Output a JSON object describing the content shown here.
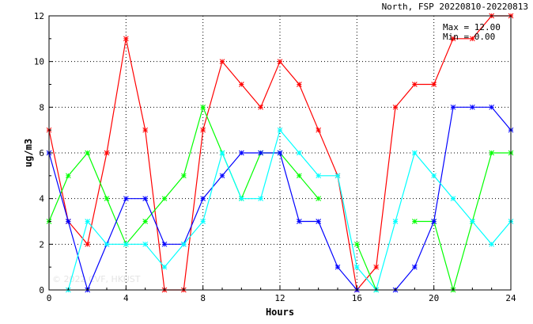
{
  "chart_data": {
    "type": "line",
    "title": "North, FSP 20220810-20220813",
    "xlabel": "Hours",
    "ylabel": "ug/m3",
    "xlim": [
      0,
      24
    ],
    "ylim": [
      0,
      12
    ],
    "x_ticks": [
      0,
      4,
      8,
      12,
      16,
      20,
      24
    ],
    "y_ticks": [
      0,
      2,
      4,
      6,
      8,
      10,
      12
    ],
    "grid": true,
    "stats": {
      "max": "Max = 12.00",
      "min": "Min =  0.00"
    },
    "watermark": "© 2022 CVF, HKUST",
    "x": [
      0,
      1,
      2,
      3,
      4,
      5,
      6,
      7,
      8,
      9,
      10,
      11,
      12,
      13,
      14,
      15,
      16,
      17,
      18,
      19,
      20,
      21,
      22,
      23,
      24
    ],
    "series": [
      {
        "color": "#ff0000",
        "values": [
          7,
          3,
          2,
          6,
          11,
          7,
          0,
          0,
          7,
          10,
          9,
          8,
          10,
          9,
          7,
          5,
          0,
          1,
          8,
          9,
          9,
          11,
          11,
          12,
          12
        ]
      },
      {
        "color": "#00ff00",
        "values": [
          3,
          5,
          6,
          4,
          2,
          3,
          4,
          5,
          8,
          6,
          4,
          6,
          6,
          5,
          4,
          null,
          2,
          0,
          null,
          3,
          3,
          0,
          3,
          6,
          6
        ]
      },
      {
        "color": "#0000ff",
        "values": [
          6,
          3,
          0,
          2,
          4,
          4,
          2,
          2,
          4,
          5,
          6,
          6,
          6,
          3,
          3,
          1,
          0,
          null,
          0,
          1,
          3,
          8,
          8,
          8,
          7
        ]
      },
      {
        "color": "#00ffff",
        "values": [
          null,
          0,
          3,
          2,
          2,
          2,
          1,
          2,
          3,
          6,
          4,
          4,
          7,
          6,
          5,
          5,
          1,
          0,
          3,
          6,
          5,
          4,
          3,
          2,
          3
        ]
      }
    ]
  }
}
